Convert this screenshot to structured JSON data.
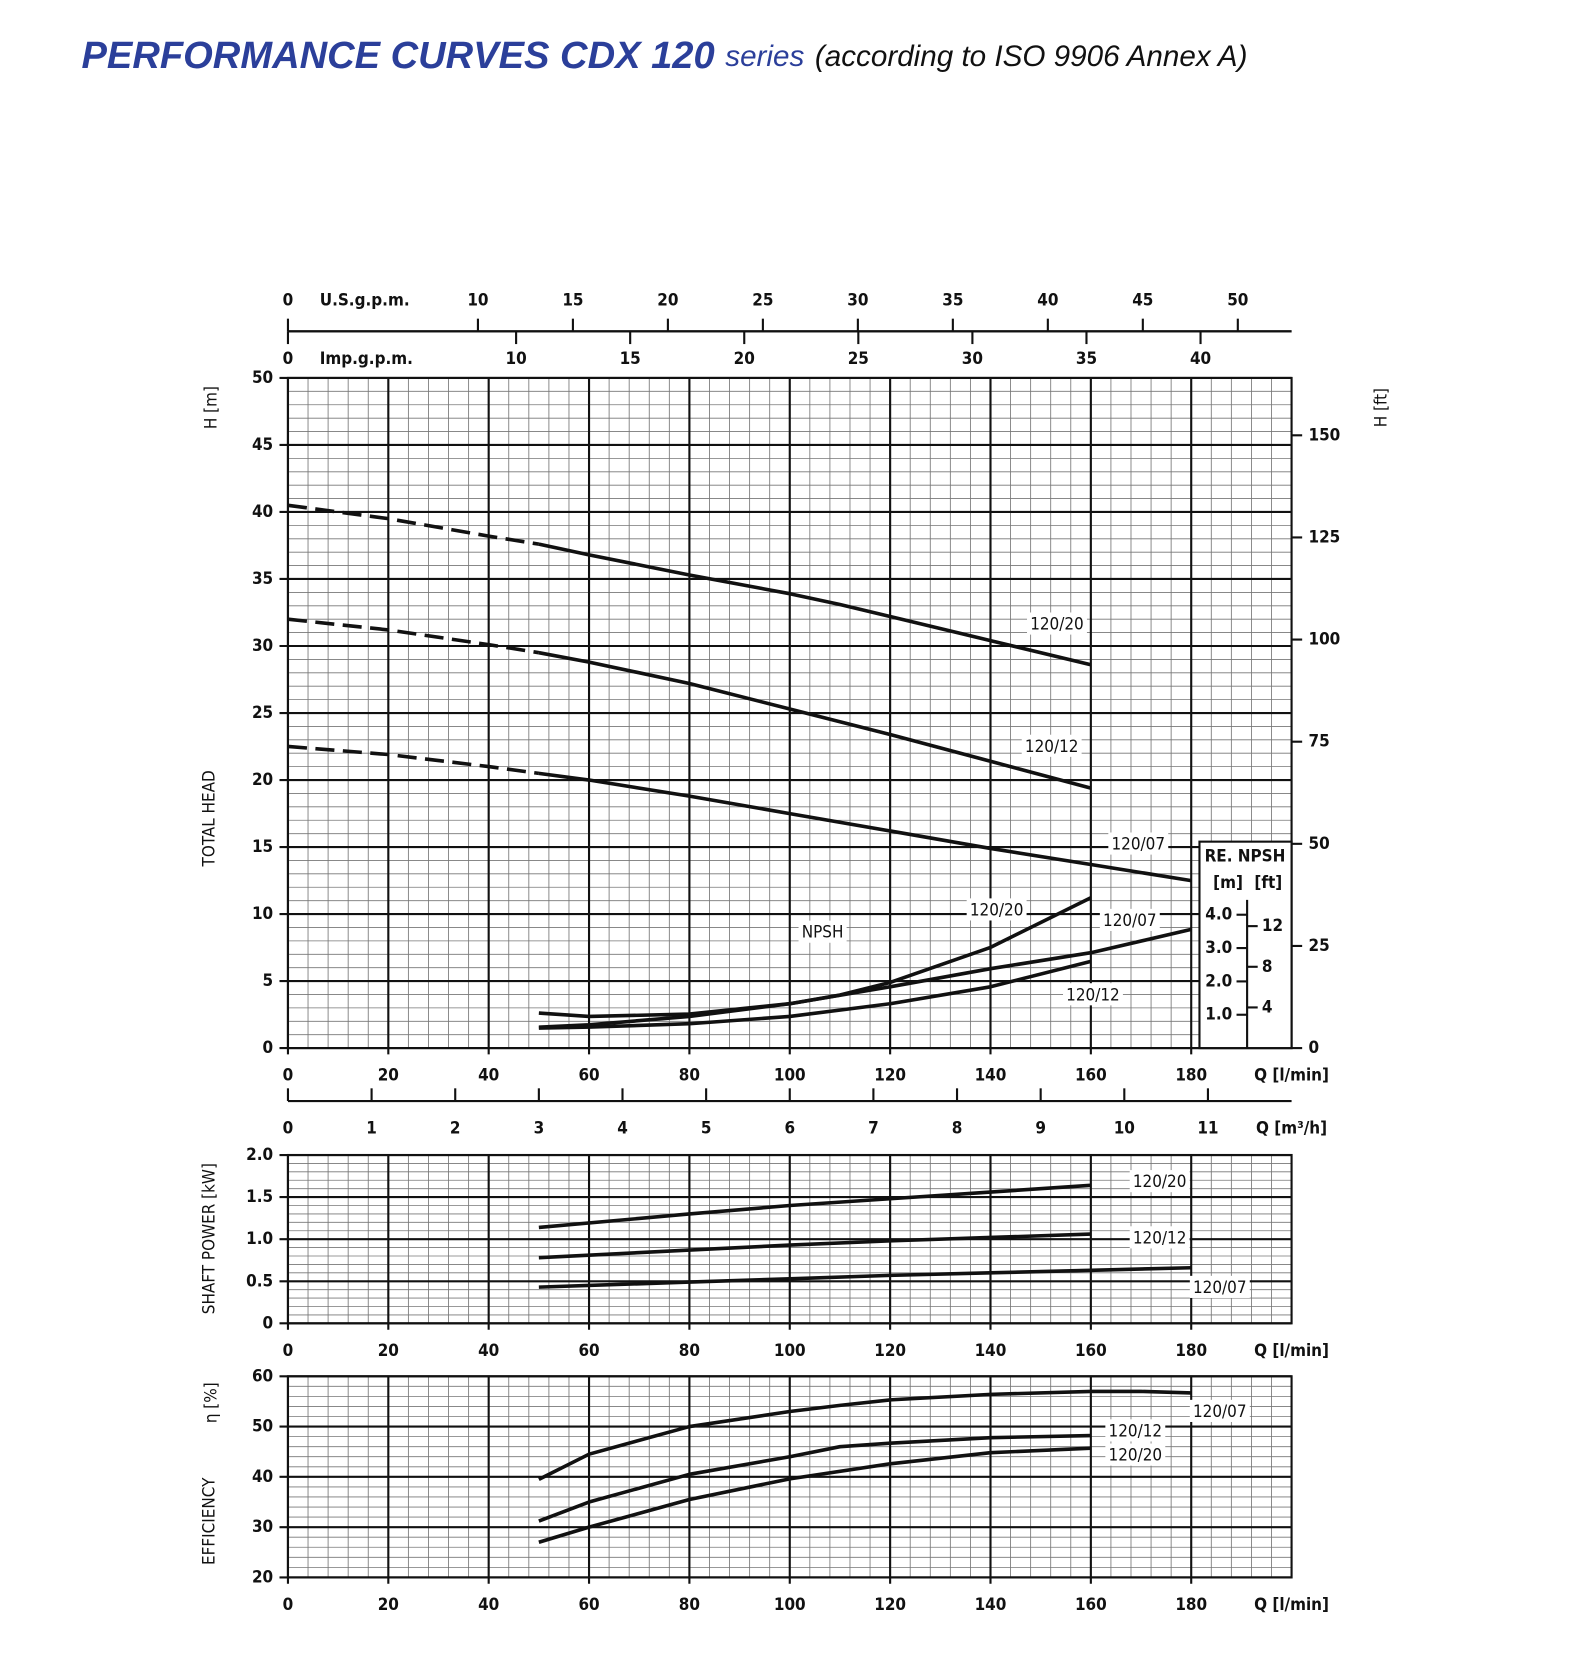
{
  "title": {
    "main": "PERFORMANCE CURVES CDX 120",
    "series": "series",
    "standard": "(according to ISO 9906 Annex A)"
  },
  "chart_data": [
    {
      "type": "line",
      "ylabel": "TOTAL HEAD",
      "yunit": "H [m]",
      "xlabel": "Q [l/min]",
      "y2label": "H [ft]",
      "xlim": [
        0,
        200
      ],
      "xticks": [
        0,
        20,
        40,
        60,
        80,
        100,
        120,
        140,
        160,
        180
      ],
      "ylim": [
        0,
        50
      ],
      "yticks": [
        0,
        5,
        10,
        15,
        20,
        25,
        30,
        35,
        40,
        45,
        50
      ],
      "y2lim": [
        0,
        164.04
      ],
      "y2ticks": [
        0,
        25,
        50,
        75,
        100,
        125,
        150
      ],
      "grid": true,
      "minor_grid": {
        "x": 4,
        "y": 1
      },
      "secondary_x": [
        {
          "label": "U.S.g.p.m.",
          "lim": [
            0,
            52.83
          ],
          "ticks": [
            0,
            10,
            15,
            20,
            25,
            30,
            35,
            40,
            45,
            50
          ]
        },
        {
          "label": "Imp.g.p.m.",
          "lim": [
            0,
            43.99
          ],
          "ticks": [
            0,
            10,
            15,
            20,
            25,
            30,
            35,
            40
          ]
        },
        {
          "label": "Q [m³/h]",
          "lim": [
            0,
            12
          ],
          "ticks": [
            0,
            1,
            2,
            3,
            4,
            5,
            6,
            7,
            8,
            9,
            10,
            11
          ]
        }
      ],
      "series": [
        {
          "name": "120/20",
          "color": "#111111",
          "dashed_x_range": [
            0,
            50
          ],
          "x": [
            0,
            20,
            40,
            50,
            60,
            80,
            100,
            110,
            120,
            140,
            160
          ],
          "values": [
            40.5,
            39.5,
            38.2,
            37.6,
            36.8,
            35.3,
            33.9,
            33.1,
            32.2,
            30.4,
            28.6
          ]
        },
        {
          "name": "120/12",
          "color": "#111111",
          "dashed_x_range": [
            0,
            50
          ],
          "x": [
            0,
            20,
            40,
            50,
            60,
            80,
            100,
            120,
            140,
            160
          ],
          "values": [
            32.0,
            31.2,
            30.1,
            29.5,
            28.8,
            27.2,
            25.3,
            23.4,
            21.4,
            19.4
          ]
        },
        {
          "name": "120/07",
          "color": "#111111",
          "dashed_x_range": [
            0,
            50
          ],
          "x": [
            0,
            20,
            40,
            50,
            60,
            80,
            100,
            120,
            140,
            160,
            180
          ],
          "values": [
            22.5,
            21.9,
            21.0,
            20.5,
            20.0,
            18.8,
            17.5,
            16.2,
            14.9,
            13.7,
            12.5
          ]
        }
      ]
    },
    {
      "type": "line",
      "title": "RE. NPSH",
      "annotation": "NPSH",
      "ylabel": "[m]",
      "y2label": "[ft]",
      "xlim": [
        0,
        200
      ],
      "ylim": [
        0,
        20.1
      ],
      "yticks": [
        {
          "value": 1,
          "label": "1.0"
        },
        {
          "value": 2,
          "label": "2.0"
        },
        {
          "value": 3,
          "label": "3.0"
        },
        {
          "value": 4,
          "label": "4.0"
        }
      ],
      "y2lim": [
        0,
        65.94
      ],
      "y2ticks": [
        4,
        8,
        12
      ],
      "series": [
        {
          "name": "120/20",
          "color": "#111111",
          "x": [
            50,
            60,
            80,
            100,
            110,
            120,
            140,
            160
          ],
          "values": [
            0.63,
            0.7,
            0.95,
            1.33,
            1.59,
            1.97,
            3.02,
            4.51
          ]
        },
        {
          "name": "120/07",
          "color": "#111111",
          "x": [
            50,
            60,
            80,
            100,
            120,
            140,
            160,
            180
          ],
          "values": [
            1.05,
            0.95,
            1.02,
            1.33,
            1.84,
            2.38,
            2.86,
            3.56
          ]
        },
        {
          "name": "120/12",
          "color": "#111111",
          "x": [
            50,
            60,
            80,
            100,
            120,
            140,
            160
          ],
          "values": [
            0.6,
            0.63,
            0.73,
            0.95,
            1.33,
            1.84,
            2.6
          ]
        }
      ]
    },
    {
      "type": "line",
      "ylabel": "SHAFT POWER [kW]",
      "xlabel": "Q [l/min]",
      "xlim": [
        0,
        200
      ],
      "xticks": [
        0,
        20,
        40,
        60,
        80,
        100,
        120,
        140,
        160,
        180
      ],
      "ylim": [
        0,
        2
      ],
      "yticks": [
        0,
        0.5,
        {
          "value": 1,
          "label": "1.0"
        },
        1.5,
        {
          "value": 2,
          "label": "2.0"
        }
      ],
      "grid": true,
      "minor_grid": {
        "x": 4,
        "y": 0.1
      },
      "series": [
        {
          "name": "120/20",
          "color": "#111111",
          "x": [
            50,
            80,
            100,
            120,
            140,
            160
          ],
          "values": [
            1.14,
            1.3,
            1.4,
            1.48,
            1.56,
            1.64
          ]
        },
        {
          "name": "120/12",
          "color": "#111111",
          "x": [
            50,
            80,
            100,
            120,
            140,
            160
          ],
          "values": [
            0.78,
            0.87,
            0.93,
            0.98,
            1.02,
            1.06
          ]
        },
        {
          "name": "120/07",
          "color": "#111111",
          "x": [
            50,
            80,
            100,
            120,
            140,
            160,
            180
          ],
          "values": [
            0.43,
            0.49,
            0.53,
            0.57,
            0.6,
            0.63,
            0.66
          ]
        }
      ]
    },
    {
      "type": "line",
      "ylabel": "EFFICIENCY",
      "yunit": "η [%]",
      "xlabel": "Q [l/min]",
      "xlim": [
        0,
        200
      ],
      "xticks": [
        0,
        20,
        40,
        60,
        80,
        100,
        120,
        140,
        160,
        180
      ],
      "ylim": [
        20,
        60
      ],
      "yticks": [
        20,
        30,
        40,
        50,
        60
      ],
      "grid": true,
      "minor_grid": {
        "x": 4,
        "y": 2
      },
      "series": [
        {
          "name": "120/07",
          "color": "#111111",
          "x": [
            50,
            60,
            80,
            100,
            110,
            120,
            140,
            160,
            170,
            180
          ],
          "values": [
            39.5,
            44.5,
            50,
            53,
            54.2,
            55.3,
            56.4,
            57,
            57,
            56.7
          ]
        },
        {
          "name": "120/12",
          "color": "#111111",
          "x": [
            50,
            60,
            80,
            100,
            110,
            120,
            140,
            160
          ],
          "values": [
            31.2,
            35,
            40.5,
            44,
            46,
            46.7,
            47.8,
            48.2
          ]
        },
        {
          "name": "120/20",
          "color": "#111111",
          "x": [
            50,
            60,
            80,
            100,
            120,
            140,
            160
          ],
          "values": [
            27,
            30,
            35.5,
            39.6,
            42.6,
            44.8,
            45.7
          ]
        }
      ]
    }
  ]
}
